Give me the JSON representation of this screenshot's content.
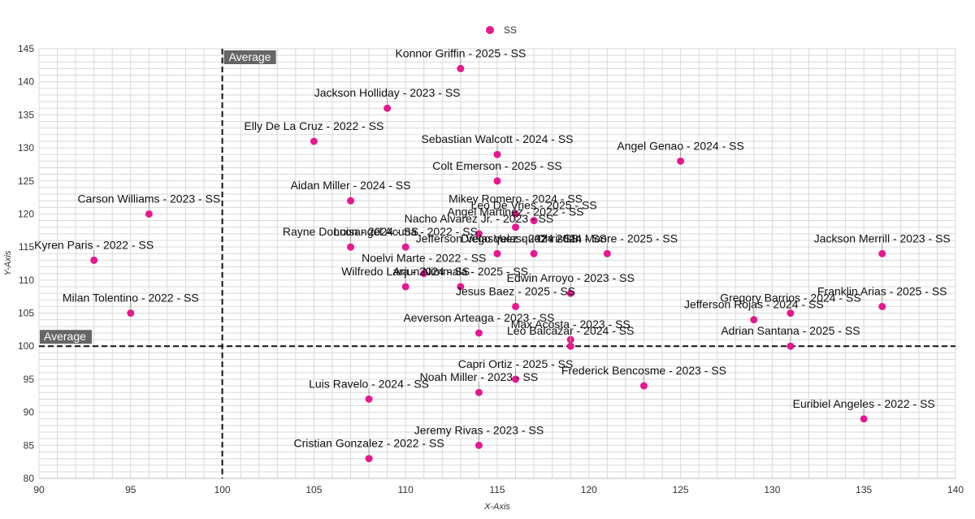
{
  "chart_data": {
    "type": "scatter",
    "xlabel": "X-Axis",
    "ylabel": "Y-Axis",
    "xlim": [
      90,
      140
    ],
    "ylim": [
      80,
      145
    ],
    "x_ticks": [
      90,
      95,
      100,
      105,
      110,
      115,
      120,
      125,
      130,
      135,
      140
    ],
    "y_ticks": [
      80,
      85,
      90,
      95,
      100,
      105,
      110,
      115,
      120,
      125,
      130,
      135,
      140,
      145
    ],
    "grid": true,
    "legend": {
      "position": "top-center",
      "entries": [
        {
          "name": "SS",
          "color": "#e6188f"
        }
      ]
    },
    "reference_lines": [
      {
        "axis": "x",
        "value": 100,
        "label": "Average"
      },
      {
        "axis": "y",
        "value": 100,
        "label": "Average"
      }
    ],
    "series": [
      {
        "name": "SS",
        "color": "#e6188f",
        "points": [
          {
            "x": 113,
            "y": 142,
            "label": "Konnor Griffin - 2025 - SS"
          },
          {
            "x": 109,
            "y": 136,
            "label": "Jackson Holliday - 2023 - SS"
          },
          {
            "x": 105,
            "y": 131,
            "label": "Elly De La Cruz - 2022 - SS"
          },
          {
            "x": 115,
            "y": 129,
            "label": "Sebastian Walcott - 2024 - SS"
          },
          {
            "x": 125,
            "y": 128,
            "label": "Angel Genao - 2024 - SS"
          },
          {
            "x": 115,
            "y": 125,
            "label": "Colt Emerson - 2025 - SS"
          },
          {
            "x": 107,
            "y": 122,
            "label": "Aidan Miller - 2024 - SS"
          },
          {
            "x": 96,
            "y": 120,
            "label": "Carson Williams - 2023 - SS"
          },
          {
            "x": 116,
            "y": 120,
            "label": "Mikey Romero - 2024 - SS"
          },
          {
            "x": 117,
            "y": 119,
            "label": "Leo De Vries - 2025 - SS"
          },
          {
            "x": 116,
            "y": 118,
            "label": "Angel Martinez - 2022 - SS"
          },
          {
            "x": 114,
            "y": 117,
            "label": "Nacho Alvarez Jr. - 2023 - SS"
          },
          {
            "x": 107,
            "y": 115,
            "label": "Rayne Doncon - 2024 - SS"
          },
          {
            "x": 110,
            "y": 115,
            "label": "Luisangel Acuna - 2022 - SS"
          },
          {
            "x": 115,
            "y": 114,
            "label": "Jefferson Velasquez - 2024 - SS"
          },
          {
            "x": 117,
            "y": 114,
            "label": "Diego Velasquez - 2024 - SS"
          },
          {
            "x": 121,
            "y": 114,
            "label": "Christian Moore - 2025 - SS"
          },
          {
            "x": 136,
            "y": 114,
            "label": "Jackson Merrill - 2023 - SS"
          },
          {
            "x": 93,
            "y": 113,
            "label": "Kyren Paris - 2022 - SS"
          },
          {
            "x": 111,
            "y": 111,
            "label": "Noelvi Marte - 2022 - SS"
          },
          {
            "x": 110,
            "y": 109,
            "label": "Wilfredo Lara - 2024 - SS"
          },
          {
            "x": 113,
            "y": 109,
            "label": "Arjun Nimmala - 2025 - SS"
          },
          {
            "x": 119,
            "y": 108,
            "label": "Edwin Arroyo - 2023 - SS"
          },
          {
            "x": 116,
            "y": 106,
            "label": "Jesus Baez - 2025 - SS"
          },
          {
            "x": 95,
            "y": 105,
            "label": "Milan Tolentino - 2022 - SS"
          },
          {
            "x": 131,
            "y": 105,
            "label": "Gregory Barrios - 2024 - SS"
          },
          {
            "x": 129,
            "y": 104,
            "label": "Jefferson Rojas - 2024 - SS"
          },
          {
            "x": 136,
            "y": 106,
            "label": "Franklin Arias - 2025 - SS"
          },
          {
            "x": 114,
            "y": 102,
            "label": "Aeverson Arteaga - 2023 - SS"
          },
          {
            "x": 119,
            "y": 101,
            "label": "Max Acosta - 2023 - SS"
          },
          {
            "x": 119,
            "y": 100,
            "label": "Leo Balcazar - 2024 - SS"
          },
          {
            "x": 131,
            "y": 100,
            "label": "Adrian Santana - 2025 - SS"
          },
          {
            "x": 116,
            "y": 95,
            "label": "Capri Ortiz - 2025 - SS"
          },
          {
            "x": 114,
            "y": 93,
            "label": "Noah Miller - 2023 - SS"
          },
          {
            "x": 108,
            "y": 92,
            "label": "Luis Ravelo - 2024 - SS"
          },
          {
            "x": 123,
            "y": 94,
            "label": "Frederick Bencosme - 2023 - SS"
          },
          {
            "x": 135,
            "y": 89,
            "label": "Euribiel Angeles - 2022 - SS"
          },
          {
            "x": 114,
            "y": 85,
            "label": "Jeremy Rivas - 2023 - SS"
          },
          {
            "x": 108,
            "y": 83,
            "label": "Cristian Gonzalez - 2022 - SS"
          }
        ]
      }
    ]
  }
}
